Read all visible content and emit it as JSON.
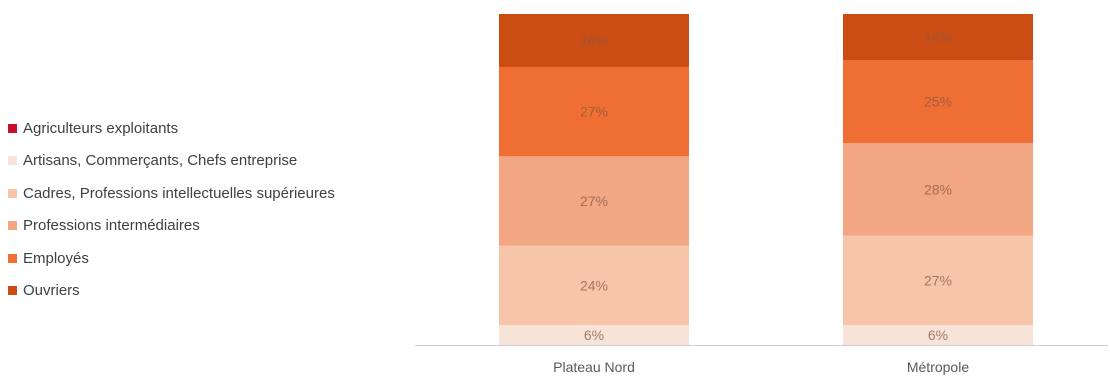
{
  "chart_data": {
    "type": "bar",
    "stacked": true,
    "percent": true,
    "categories": [
      "Plateau Nord",
      "Métropole"
    ],
    "series": [
      {
        "name": "Agriculteurs exploitants",
        "color": "#c8102e",
        "values": [
          0,
          0
        ]
      },
      {
        "name": "Artisans, Commerçants, Chefs entreprise",
        "color": "#f7e3d8",
        "values": [
          6,
          6
        ]
      },
      {
        "name": "Cadres, Professions intellectuelles supérieures",
        "color": "#f7c6aa",
        "values": [
          24,
          27
        ]
      },
      {
        "name": "Professions intermédiaires",
        "color": "#f2a683",
        "values": [
          27,
          28
        ]
      },
      {
        "name": "Employés",
        "color": "#ef6e33",
        "values": [
          27,
          25
        ]
      },
      {
        "name": "Ouvriers",
        "color": "#cb4d14",
        "values": [
          16,
          14
        ]
      }
    ],
    "data_labels": [
      [
        "",
        "6%",
        "24%",
        "27%",
        "27%",
        "16%"
      ],
      [
        "",
        "6%",
        "27%",
        "28%",
        "25%",
        "14%"
      ]
    ],
    "legend_position": "left",
    "grid": false
  }
}
